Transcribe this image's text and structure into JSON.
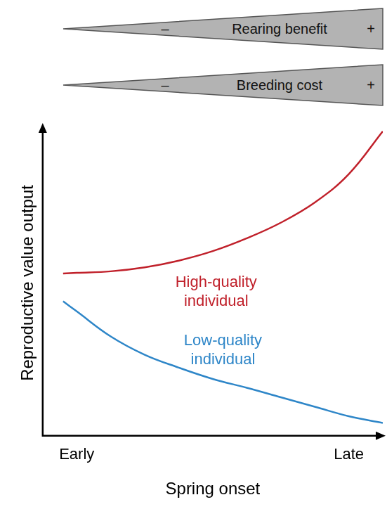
{
  "chart_data": {
    "type": "line",
    "xlabel": "Spring onset",
    "ylabel": "Reproductive value output",
    "x": [
      0.6,
      1,
      2,
      3,
      4,
      5,
      6,
      7,
      8,
      9,
      10
    ],
    "series": [
      {
        "name": "High-quality individual",
        "color": "#c0202a",
        "values": [
          53.1,
          53.3,
          53.8,
          55.1,
          57.3,
          60.4,
          64.6,
          69.7,
          76.3,
          85.6,
          99.6
        ]
      },
      {
        "name": "Low-quality individual",
        "color": "#2e86c8",
        "values": [
          44.0,
          40.7,
          32.5,
          26.5,
          22.3,
          18.6,
          15.7,
          12.6,
          9.5,
          6.4,
          4.2
        ]
      }
    ],
    "xlim": [
      0,
      10
    ],
    "xticks": [
      {
        "value": 1,
        "label": "Early"
      },
      {
        "value": 9,
        "label": "Late"
      }
    ],
    "ylim": [
      0,
      100
    ],
    "grid": false,
    "tick_labels": "x",
    "annotations": [
      {
        "text": "Rearing benefit",
        "low": "–",
        "high": "+"
      },
      {
        "text": "Breeding cost",
        "low": "–",
        "high": "+"
      }
    ]
  }
}
